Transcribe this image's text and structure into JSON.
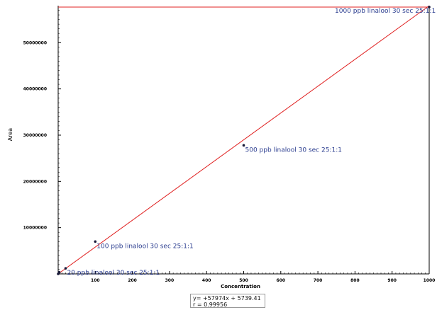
{
  "chart_data": {
    "type": "scatter",
    "title": "",
    "xlabel": "Concentration",
    "ylabel": "Area",
    "xlim": [
      0,
      1000
    ],
    "ylim": [
      0,
      58000000
    ],
    "x_ticks": [
      100,
      200,
      300,
      400,
      500,
      600,
      700,
      800,
      900,
      1000
    ],
    "x_tick_labels": [
      "100",
      "200",
      "300",
      "400",
      "500",
      "600",
      "700",
      "800",
      "900",
      "1000"
    ],
    "y_ticks": [
      10000000,
      20000000,
      30000000,
      40000000,
      50000000
    ],
    "y_tick_labels": [
      "10000000",
      "20000000",
      "30000000",
      "40000000",
      "50000000"
    ],
    "points": [
      {
        "x": 0,
        "y": 0,
        "label": ""
      },
      {
        "x": 3,
        "y": 350000,
        "label": ""
      },
      {
        "x": 20,
        "y": 1200000,
        "label": "20 ppb linalool 30 sec 25:1:1"
      },
      {
        "x": 100,
        "y": 7000000,
        "label": "100 ppb linalool 30 sec 25:1:1"
      },
      {
        "x": 500,
        "y": 27800000,
        "label": "500 ppb linalool 30 sec 25:1:1"
      },
      {
        "x": 1000,
        "y": 57700000,
        "label": "1000 ppb linalool 30 sec 25:1:1"
      }
    ],
    "fit_line": {
      "slope": 57974,
      "intercept": 5739.41
    },
    "reference_line_y": 57700000,
    "equation": "y= +57974x + 5739.41",
    "r_value": "r = 0.99956",
    "grid": false,
    "colors": {
      "fit_line": "#e02020",
      "point": "#1a1a3a",
      "label": "#2a3c8f",
      "axis": "#000000"
    }
  }
}
